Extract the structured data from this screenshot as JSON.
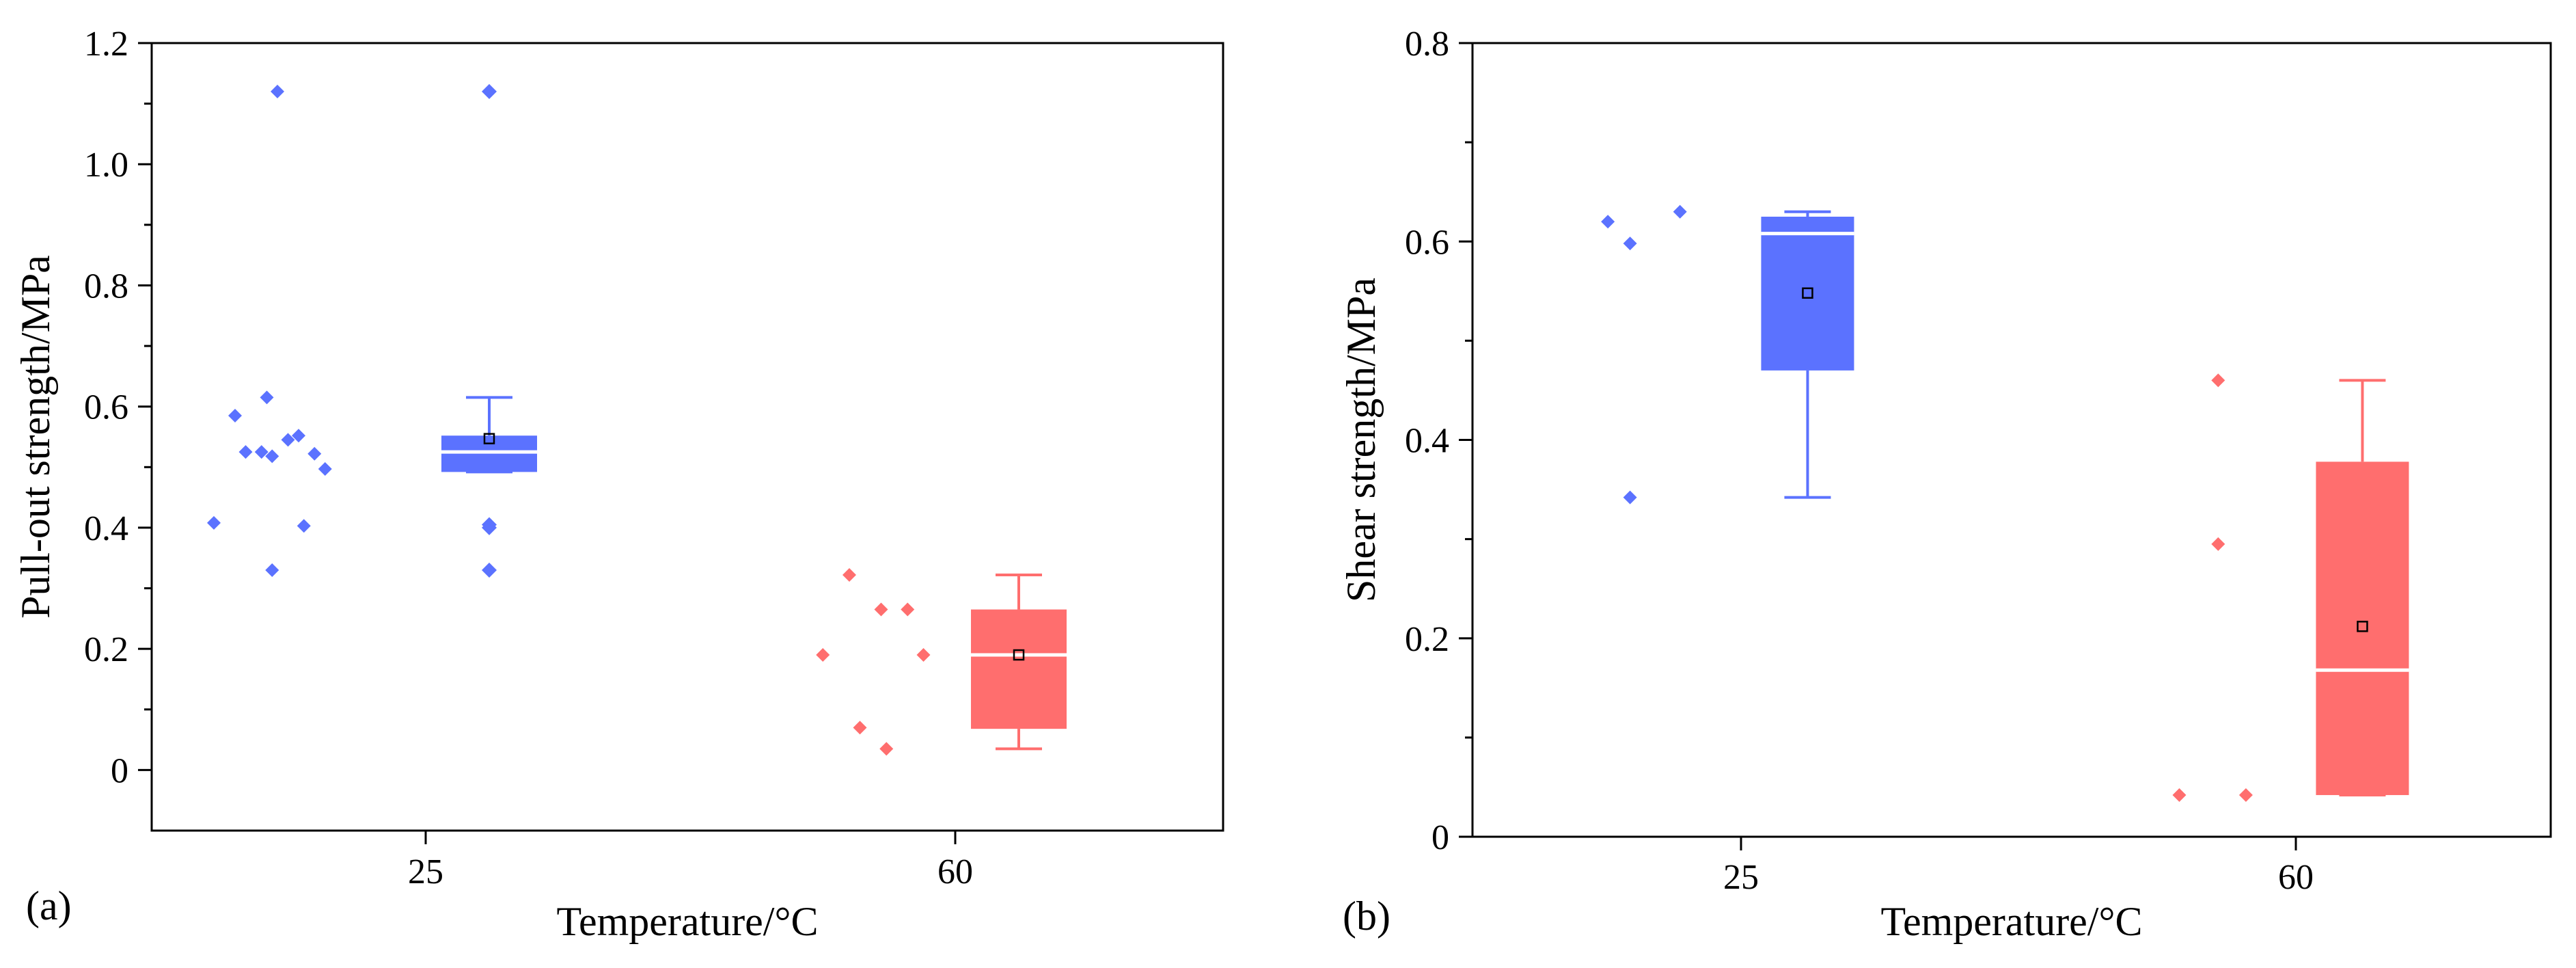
{
  "chart_data": [
    {
      "type": "box",
      "panel_label": "(a)",
      "xlabel": "Temperature/°C",
      "ylabel": "Pull-out strength/MPa",
      "ylim": [
        -0.1,
        1.2
      ],
      "yticks": [
        0,
        0.2,
        0.4,
        0.6,
        0.8,
        1.0,
        1.2
      ],
      "ytick_labels": [
        "0",
        "0.2",
        "0.4",
        "0.6",
        "0.8",
        "1.0",
        "1.2"
      ],
      "categories": [
        "25",
        "60"
      ],
      "groups": [
        {
          "category": "25",
          "color": "#5b72ff",
          "points": [
            {
              "dx": -0.28,
              "y": 1.12
            },
            {
              "dx": -0.36,
              "y": 0.585
            },
            {
              "dx": -0.3,
              "y": 0.615
            },
            {
              "dx": -0.34,
              "y": 0.525
            },
            {
              "dx": -0.31,
              "y": 0.525
            },
            {
              "dx": -0.29,
              "y": 0.518
            },
            {
              "dx": -0.26,
              "y": 0.545
            },
            {
              "dx": -0.24,
              "y": 0.552
            },
            {
              "dx": -0.21,
              "y": 0.522
            },
            {
              "dx": -0.19,
              "y": 0.497
            },
            {
              "dx": -0.4,
              "y": 0.408
            },
            {
              "dx": -0.23,
              "y": 0.403
            },
            {
              "dx": -0.29,
              "y": 0.33
            }
          ],
          "box": {
            "q1": 0.492,
            "median": 0.525,
            "q3": 0.552,
            "mean": 0.547,
            "whisker_low": 0.492,
            "whisker_high": 0.615
          },
          "outliers": [
            1.12,
            0.405,
            0.4,
            0.33
          ]
        },
        {
          "category": "60",
          "color": "#ff6e6e",
          "points": [
            {
              "dx": -0.2,
              "y": 0.322
            },
            {
              "dx": -0.14,
              "y": 0.265
            },
            {
              "dx": -0.09,
              "y": 0.265
            },
            {
              "dx": -0.25,
              "y": 0.19
            },
            {
              "dx": -0.06,
              "y": 0.19
            },
            {
              "dx": -0.18,
              "y": 0.07
            },
            {
              "dx": -0.13,
              "y": 0.035
            }
          ],
          "box": {
            "q1": 0.068,
            "median": 0.19,
            "q3": 0.265,
            "mean": 0.19,
            "whisker_low": 0.035,
            "whisker_high": 0.322
          },
          "outliers": []
        }
      ]
    },
    {
      "type": "box",
      "panel_label": "(b)",
      "xlabel": "Temperature/°C",
      "ylabel": "Shear strength/MPa",
      "ylim": [
        0,
        0.8
      ],
      "yticks": [
        0,
        0.2,
        0.4,
        0.6,
        0.8
      ],
      "ytick_labels": [
        "0",
        "0.2",
        "0.4",
        "0.6",
        "0.8"
      ],
      "categories": [
        "25",
        "60"
      ],
      "groups": [
        {
          "category": "25",
          "color": "#5b72ff",
          "points": [
            {
              "dx": -0.24,
              "y": 0.62
            },
            {
              "dx": -0.11,
              "y": 0.63
            },
            {
              "dx": -0.2,
              "y": 0.598
            },
            {
              "dx": -0.2,
              "y": 0.342
            }
          ],
          "box": {
            "q1": 0.47,
            "median": 0.608,
            "q3": 0.625,
            "mean": 0.548,
            "whisker_low": 0.342,
            "whisker_high": 0.63
          },
          "outliers": []
        },
        {
          "category": "60",
          "color": "#ff6e6e",
          "points": [
            {
              "dx": -0.14,
              "y": 0.46
            },
            {
              "dx": -0.14,
              "y": 0.295
            },
            {
              "dx": -0.21,
              "y": 0.042
            },
            {
              "dx": -0.09,
              "y": 0.042
            }
          ],
          "box": {
            "q1": 0.042,
            "median": 0.168,
            "q3": 0.378,
            "mean": 0.212,
            "whisker_low": 0.042,
            "whisker_high": 0.46
          },
          "outliers": []
        }
      ]
    }
  ]
}
